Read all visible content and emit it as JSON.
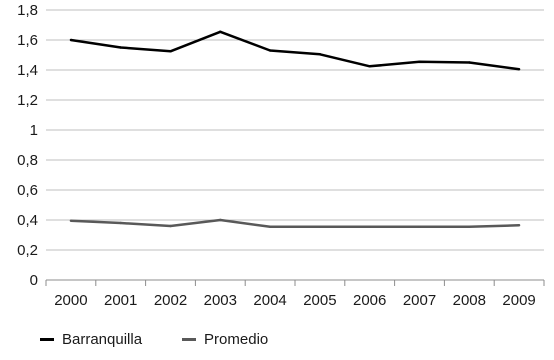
{
  "chart_data": {
    "type": "line",
    "categories": [
      "2000",
      "2001",
      "2002",
      "2003",
      "2004",
      "2005",
      "2006",
      "2007",
      "2008",
      "2009"
    ],
    "ylim": [
      0,
      1.8
    ],
    "yticks": [
      "0",
      "0,2",
      "0,4",
      "0,6",
      "0,8",
      "1",
      "1,2",
      "1,4",
      "1,6",
      "1,8"
    ],
    "grid": true,
    "legend_position": "bottom-left",
    "series": [
      {
        "name": "Barranquilla",
        "color": "#000000",
        "values": [
          1.6,
          1.55,
          1.525,
          1.655,
          1.53,
          1.505,
          1.425,
          1.455,
          1.45,
          1.405
        ]
      },
      {
        "name": "Promedio",
        "color": "#595959",
        "values": [
          0.395,
          0.38,
          0.36,
          0.4,
          0.355,
          0.355,
          0.355,
          0.355,
          0.355,
          0.365
        ]
      }
    ]
  }
}
